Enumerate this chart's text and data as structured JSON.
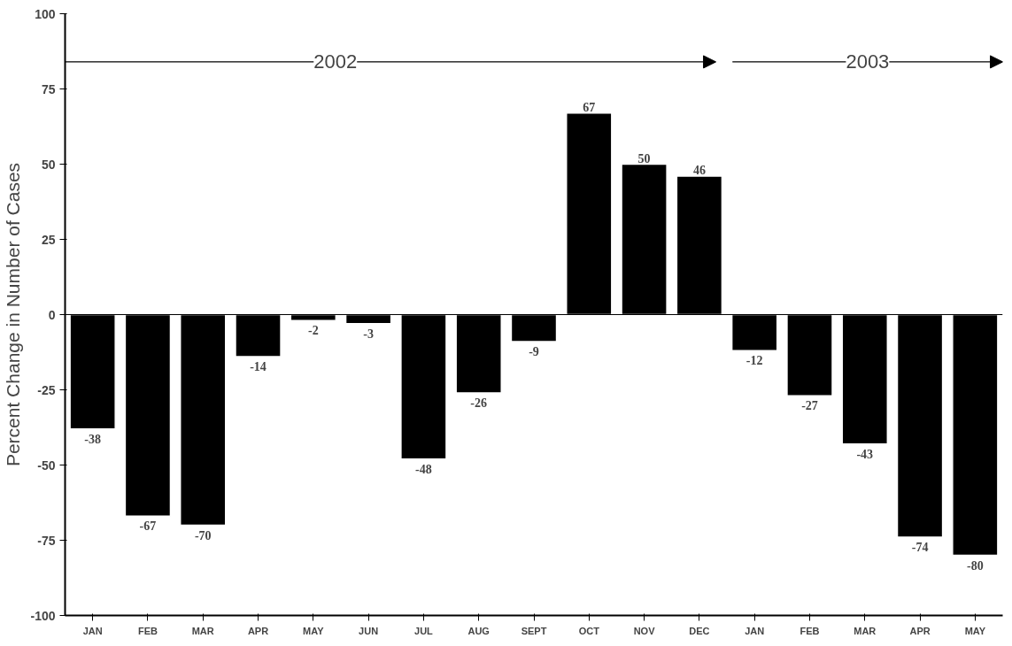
{
  "chart_data": {
    "type": "bar",
    "ylabel": "Percent Change in Number of Cases",
    "categories": [
      "JAN",
      "FEB",
      "MAR",
      "APR",
      "MAY",
      "JUN",
      "JUL",
      "AUG",
      "SEPT",
      "OCT",
      "NOV",
      "DEC",
      "JAN",
      "FEB",
      "MAR",
      "APR",
      "MAY"
    ],
    "values": [
      -38,
      -67,
      -70,
      -14,
      -2,
      -3,
      -48,
      -26,
      -9,
      67,
      50,
      46,
      -12,
      -27,
      -43,
      -74,
      -80
    ],
    "color": "#000000",
    "ylim": [
      -100,
      100
    ],
    "yticks": [
      -100,
      -75,
      -50,
      -25,
      0,
      25,
      50,
      75,
      100
    ],
    "data_labels": true,
    "grid": false,
    "ref_lines": [
      {
        "axis": "y",
        "value": 0,
        "color": "#000000"
      }
    ],
    "annotations": [
      "2002",
      "2003"
    ]
  }
}
